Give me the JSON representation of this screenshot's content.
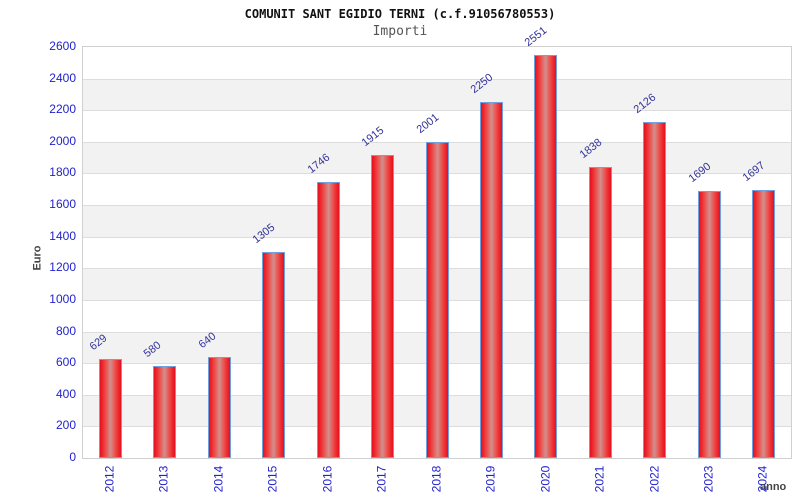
{
  "chart_data": {
    "type": "bar",
    "title": "COMUNIT SANT EGIDIO TERNI (c.f.91056780553)",
    "subtitle": "Importi",
    "xlabel": "anno",
    "ylabel": "Euro",
    "categories": [
      "2012",
      "2013",
      "2014",
      "2015",
      "2016",
      "2017",
      "2018",
      "2019",
      "2020",
      "2021",
      "2022",
      "2023",
      "2024"
    ],
    "values": [
      629,
      580,
      640,
      1305,
      1746,
      1915,
      2001,
      2250,
      2551,
      1838,
      2126,
      1690,
      1697
    ],
    "ylim": [
      0,
      2600
    ],
    "ytick_step": 200,
    "yticks": [
      0,
      200,
      400,
      600,
      800,
      1000,
      1200,
      1400,
      1600,
      1800,
      2000,
      2200,
      2400,
      2600
    ],
    "grid": true,
    "legend": "none",
    "colors": {
      "bar_edge": "#e3101f",
      "bar_center": "#d09090",
      "bar_border": "#6fa0e0",
      "axis_tick_label": "#2222cc",
      "value_label": "#333399",
      "axis_title": "#444444",
      "band_gray": "#f2f2f2",
      "gridline": "#dddddd",
      "plot_border": "#d0d0d0",
      "title": "#111111",
      "subtitle": "#555555",
      "background": "#ffffff"
    }
  }
}
